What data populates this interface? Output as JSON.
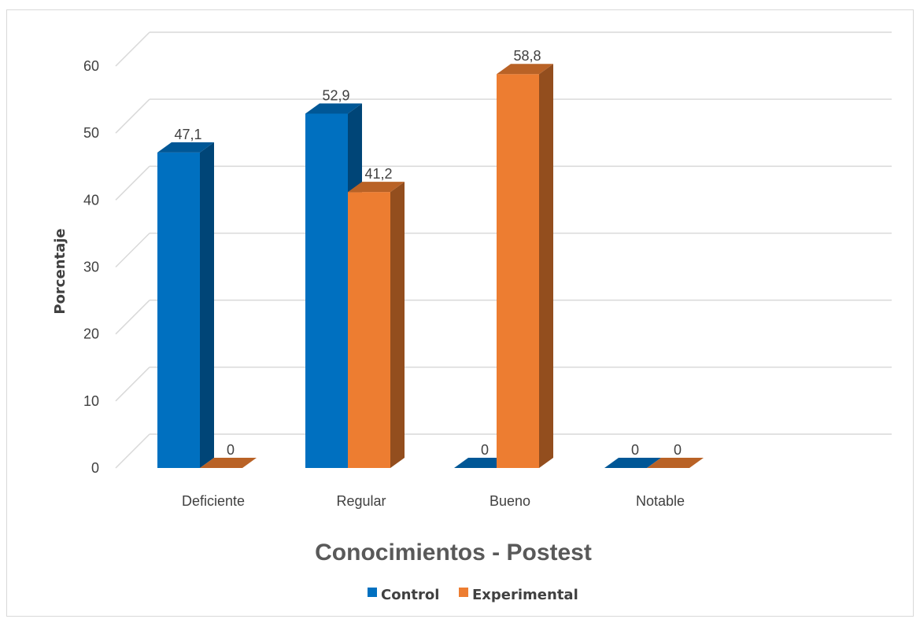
{
  "chart_data": {
    "type": "bar",
    "title": "Conocimientos - Postest",
    "xlabel": "",
    "ylabel": "Porcentaje",
    "ylim": [
      0,
      60
    ],
    "yticks": [
      0,
      10,
      20,
      30,
      40,
      50,
      60
    ],
    "categories": [
      "Deficiente",
      "Regular",
      "Bueno",
      "Notable"
    ],
    "series": [
      {
        "name": "Control",
        "values": [
          47.1,
          52.9,
          0,
          0
        ],
        "labels": [
          "47,1",
          "52,9",
          "0",
          "0"
        ],
        "color": "#0070C0"
      },
      {
        "name": "Experimental",
        "values": [
          0,
          41.2,
          58.8,
          0
        ],
        "labels": [
          "0",
          "41,2",
          "58,8",
          "0"
        ],
        "color": "#ED7D31"
      }
    ],
    "grid": true,
    "legend_position": "bottom",
    "style": "3d-clustered-column"
  }
}
